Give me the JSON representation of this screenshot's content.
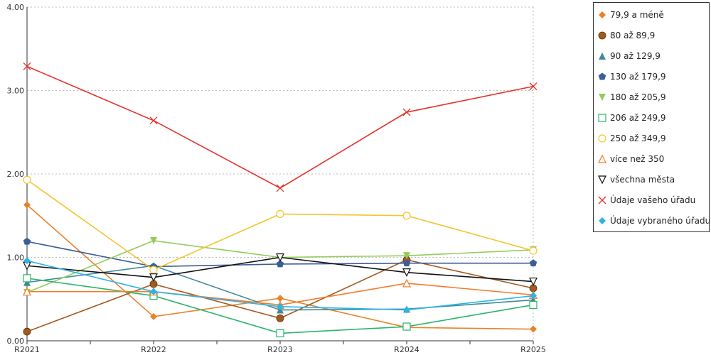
{
  "chart_data": {
    "type": "line",
    "x": [
      "R2021",
      "R2022",
      "R2023",
      "R2024",
      "R2025"
    ],
    "ylim": [
      0,
      4
    ],
    "yticks": [
      "0.00",
      "1.00",
      "2.00",
      "3.00",
      "4.00"
    ],
    "grid": "horizontal-dotted",
    "legend_position": "right",
    "series": [
      {
        "name": "79,9 a méně",
        "color": "#E8822A",
        "marker": "diamond",
        "values": [
          1.63,
          0.29,
          0.51,
          0.16,
          0.14
        ]
      },
      {
        "name": "80 až 89,9",
        "color": "#A35A1F",
        "marker": "circle-filled",
        "values": [
          0.11,
          0.68,
          0.27,
          0.97,
          0.63
        ]
      },
      {
        "name": "90 až 129,9",
        "color": "#3F8A9A",
        "marker": "triangle-filled",
        "values": [
          0.7,
          0.9,
          0.37,
          0.38,
          0.49
        ]
      },
      {
        "name": "130 až 179,9",
        "color": "#3B5E96",
        "marker": "pentagon-filled",
        "values": [
          1.19,
          0.89,
          0.92,
          0.93,
          0.93
        ]
      },
      {
        "name": "180 až 205,9",
        "color": "#93CC5A",
        "marker": "triangle-down-filled",
        "values": [
          0.58,
          1.2,
          1.0,
          1.02,
          1.09
        ]
      },
      {
        "name": "206 až 249,9",
        "color": "#2BB46A",
        "marker": "square-open",
        "values": [
          0.75,
          0.54,
          0.09,
          0.17,
          0.43
        ]
      },
      {
        "name": "250 až 349,9",
        "color": "#F2C52A",
        "marker": "circle-open",
        "values": [
          1.93,
          0.85,
          1.52,
          1.5,
          1.08
        ]
      },
      {
        "name": "více než 350",
        "color": "#F47A2A",
        "marker": "triangle-open",
        "values": [
          0.59,
          0.59,
          0.43,
          0.69,
          0.55
        ]
      },
      {
        "name": "všechna města",
        "color": "#111111",
        "marker": "triangle-down-open",
        "values": [
          0.9,
          0.76,
          1.0,
          0.82,
          0.71
        ]
      },
      {
        "name": "Údaje vašeho úřadu",
        "color": "#E8302A",
        "marker": "x",
        "values": [
          3.29,
          2.64,
          1.83,
          2.74,
          3.05
        ]
      },
      {
        "name": "Údaje vybraného úřadu",
        "color": "#2AB4E8",
        "marker": "diamond",
        "values": [
          0.96,
          0.59,
          0.41,
          0.37,
          0.54
        ]
      }
    ]
  }
}
